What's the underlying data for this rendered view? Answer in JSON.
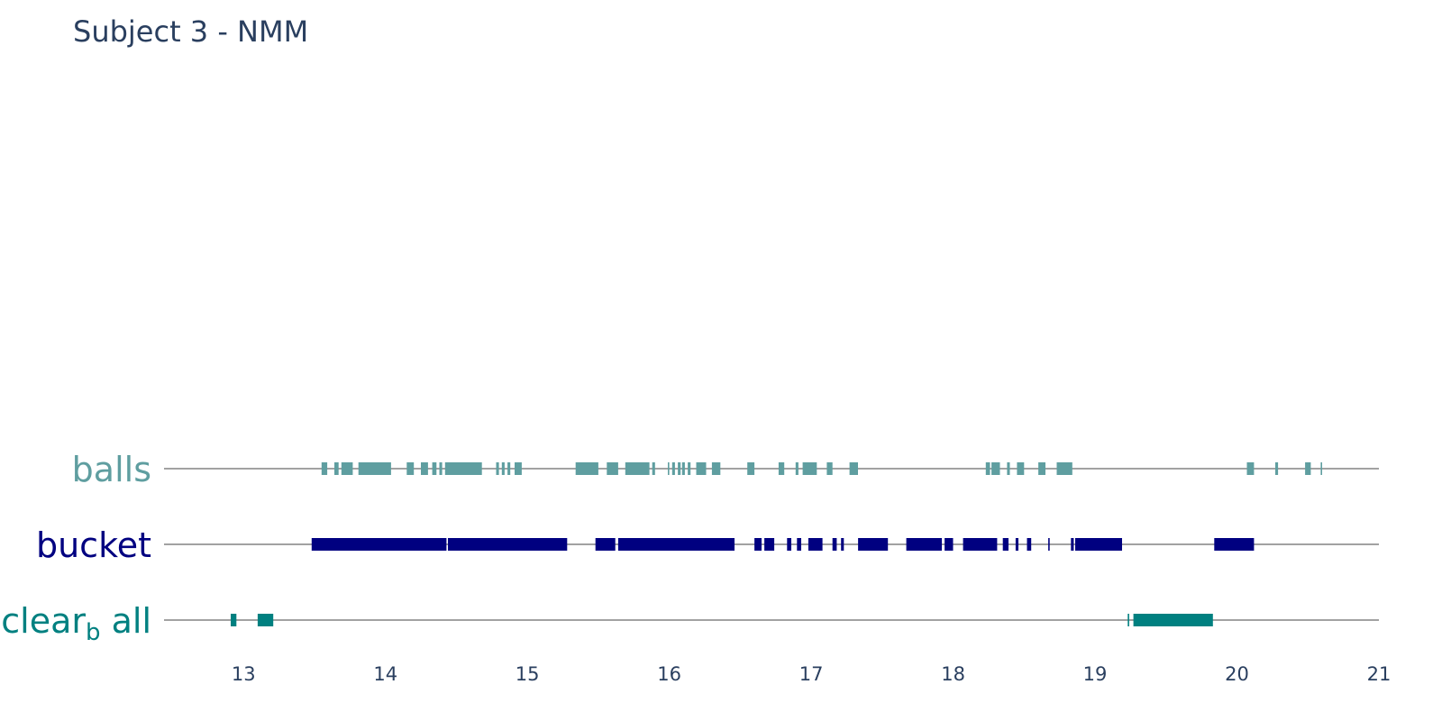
{
  "chart_data": {
    "type": "bar",
    "title": "Subject 3 - NMM",
    "xlabel": "",
    "ylabel": "",
    "xlim": [
      12.44,
      21.0
    ],
    "x_ticks": [
      13,
      14,
      15,
      16,
      17,
      18,
      19,
      20,
      21
    ],
    "grid": false,
    "legend": "none",
    "tracks": [
      {
        "label_main": "balls",
        "label_sub": "",
        "label_tail": "",
        "color": "#5f9ea0",
        "events": [
          [
            13.55,
            13.59
          ],
          [
            13.64,
            13.67
          ],
          [
            13.69,
            13.77
          ],
          [
            13.81,
            14.04
          ],
          [
            14.15,
            14.2
          ],
          [
            14.25,
            14.3
          ],
          [
            14.33,
            14.36
          ],
          [
            14.38,
            14.4
          ],
          [
            14.42,
            14.68
          ],
          [
            14.78,
            14.8
          ],
          [
            14.82,
            14.84
          ],
          [
            14.86,
            14.88
          ],
          [
            14.91,
            14.96
          ],
          [
            15.34,
            15.5
          ],
          [
            15.56,
            15.64
          ],
          [
            15.69,
            15.86
          ],
          [
            15.88,
            15.9
          ],
          [
            15.99,
            16.0
          ],
          [
            16.02,
            16.04
          ],
          [
            16.06,
            16.08
          ],
          [
            16.09,
            16.11
          ],
          [
            16.13,
            16.15
          ],
          [
            16.19,
            16.26
          ],
          [
            16.3,
            16.36
          ],
          [
            16.55,
            16.6
          ],
          [
            16.77,
            16.81
          ],
          [
            16.89,
            16.91
          ],
          [
            16.94,
            17.04
          ],
          [
            17.11,
            17.15
          ],
          [
            17.27,
            17.33
          ],
          [
            18.23,
            18.26
          ],
          [
            18.27,
            18.33
          ],
          [
            18.38,
            18.4
          ],
          [
            18.45,
            18.5
          ],
          [
            18.6,
            18.65
          ],
          [
            18.73,
            18.84
          ],
          [
            20.07,
            20.12
          ],
          [
            20.27,
            20.29
          ],
          [
            20.48,
            20.52
          ],
          [
            20.59,
            20.6
          ]
        ]
      },
      {
        "label_main": "bucket",
        "label_sub": "",
        "label_tail": "",
        "color": "#000080",
        "events": [
          [
            13.48,
            14.43
          ],
          [
            14.44,
            15.28
          ],
          [
            15.48,
            15.62
          ],
          [
            15.64,
            16.46
          ],
          [
            16.6,
            16.65
          ],
          [
            16.67,
            16.74
          ],
          [
            16.83,
            16.86
          ],
          [
            16.9,
            16.93
          ],
          [
            16.98,
            17.08
          ],
          [
            17.15,
            17.18
          ],
          [
            17.21,
            17.23
          ],
          [
            17.33,
            17.54
          ],
          [
            17.67,
            17.92
          ],
          [
            17.94,
            18.0
          ],
          [
            18.07,
            18.31
          ],
          [
            18.35,
            18.39
          ],
          [
            18.44,
            18.46
          ],
          [
            18.52,
            18.55
          ],
          [
            18.67,
            18.68
          ],
          [
            18.83,
            18.85
          ],
          [
            18.86,
            19.19
          ],
          [
            19.84,
            20.12
          ]
        ]
      },
      {
        "label_main": "clear",
        "label_sub": "b",
        "label_tail": "all",
        "color": "#008080",
        "events": [
          [
            12.91,
            12.95
          ],
          [
            13.1,
            13.21
          ],
          [
            19.23,
            19.24
          ],
          [
            19.27,
            19.83
          ]
        ]
      }
    ]
  }
}
